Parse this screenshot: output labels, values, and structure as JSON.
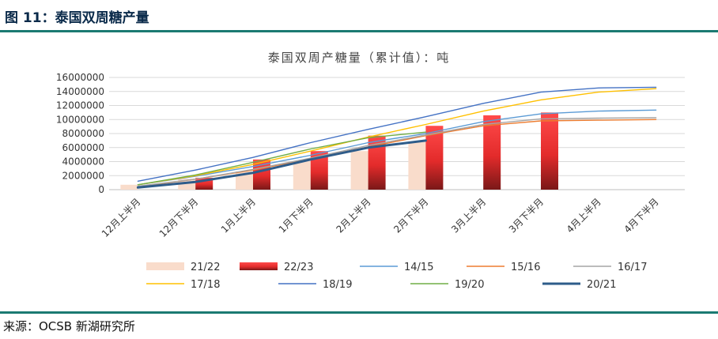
{
  "figure_label": "图 11：泰国双周糖产量",
  "source": "来源：OCSB 新湖研究所",
  "chart_data": {
    "type": "bar",
    "title": "泰国双周产糖量（累计值）：吨",
    "xlabel": "",
    "ylabel": "",
    "categories": [
      "12月上半月",
      "12月下半月",
      "1月上半月",
      "1月下半月",
      "2月上半月",
      "2月下半月",
      "3月上半月",
      "3月下半月",
      "4月上半月",
      "4月下半月"
    ],
    "ylim": [
      0,
      16000000
    ],
    "yticks": [
      0,
      2000000,
      4000000,
      6000000,
      8000000,
      10000000,
      12000000,
      14000000,
      16000000
    ],
    "ytick_labels": [
      "0",
      "2000000",
      "4000000",
      "6000000",
      "8000000",
      "10000000",
      "12000000",
      "14000000",
      "16000000"
    ],
    "grid": true,
    "legend_position": "bottom",
    "bar_series": [
      {
        "name": "21/22",
        "color": "#f9dccb",
        "values": [
          700000,
          1550000,
          2600000,
          4100000,
          5500000,
          6800000,
          null,
          null,
          null,
          null
        ]
      },
      {
        "name": "22/23",
        "color": "#e32b2b",
        "values": [
          null,
          1700000,
          4300000,
          5500000,
          7700000,
          9100000,
          10600000,
          11000000,
          null,
          null
        ]
      }
    ],
    "line_series": [
      {
        "name": "14/15",
        "color": "#5b9bd5",
        "width": 1.4,
        "values": [
          700000,
          1900000,
          3300000,
          4900000,
          6700000,
          8000000,
          9700000,
          10800000,
          11200000,
          11350000
        ]
      },
      {
        "name": "15/16",
        "color": "#ed7d31",
        "width": 1.4,
        "values": [
          400000,
          1500000,
          2800000,
          4400000,
          6100000,
          7700000,
          9100000,
          9800000,
          9900000,
          10000000
        ]
      },
      {
        "name": "16/17",
        "color": "#a5a5a5",
        "width": 1.4,
        "values": [
          500000,
          1500000,
          2900000,
          4500000,
          6300000,
          7800000,
          9300000,
          10100000,
          10200000,
          10250000
        ]
      },
      {
        "name": "17/18",
        "color": "#ffc000",
        "width": 1.4,
        "values": [
          700000,
          2000000,
          3600000,
          5500000,
          7500000,
          9300000,
          11200000,
          12800000,
          13900000,
          14400000
        ]
      },
      {
        "name": "18/19",
        "color": "#4472c4",
        "width": 1.4,
        "values": [
          1200000,
          2800000,
          4600000,
          6700000,
          8600000,
          10400000,
          12300000,
          13900000,
          14500000,
          14600000
        ]
      },
      {
        "name": "19/20",
        "color": "#70ad47",
        "width": 1.4,
        "values": [
          700000,
          2100000,
          3900000,
          5800000,
          7400000,
          8200000,
          null,
          null,
          null,
          null
        ]
      },
      {
        "name": "20/21",
        "color": "#2e5c8a",
        "width": 3,
        "values": [
          300000,
          1100000,
          2400000,
          4300000,
          6000000,
          7000000,
          null,
          null,
          null,
          null
        ]
      }
    ],
    "legend_order": [
      "21/22",
      "22/23",
      "14/15",
      "15/16",
      "16/17",
      "17/18",
      "18/19",
      "19/20",
      "20/21"
    ]
  }
}
